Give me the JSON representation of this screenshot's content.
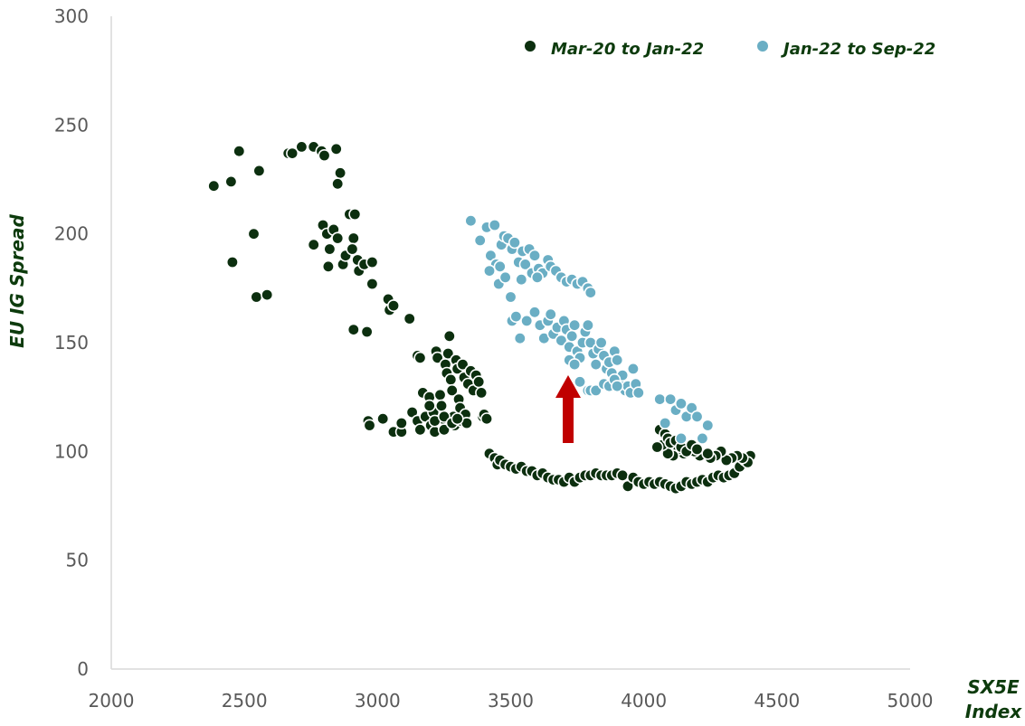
{
  "chart_data": {
    "type": "scatter",
    "title": "",
    "xlabel": "SX5E Index",
    "xlabel_lines": [
      "SX5E",
      "Index"
    ],
    "ylabel": "EU IG Spread",
    "xlim": [
      2000,
      5000
    ],
    "ylim": [
      0,
      300
    ],
    "x_ticks": [
      "2000",
      "2500",
      "3000",
      "3500",
      "4000",
      "4500",
      "5000"
    ],
    "y_ticks": [
      "0",
      "50",
      "100",
      "150",
      "200",
      "250",
      "300"
    ],
    "grid": false,
    "legend": "top-right",
    "annotation": "red up arrow",
    "series": [
      {
        "name": "Mar-20 to Jan-22",
        "color": "#0c2f0f",
        "points": [
          [
            2385,
            222
          ],
          [
            2450,
            224
          ],
          [
            2480,
            238
          ],
          [
            2555,
            229
          ],
          [
            2455,
            187
          ],
          [
            2535,
            200
          ],
          [
            2545,
            171
          ],
          [
            2585,
            172
          ],
          [
            2665,
            237
          ],
          [
            2680,
            237
          ],
          [
            2715,
            240
          ],
          [
            2760,
            240
          ],
          [
            2790,
            238
          ],
          [
            2800,
            236
          ],
          [
            2845,
            239
          ],
          [
            2860,
            228
          ],
          [
            2850,
            223
          ],
          [
            2760,
            195
          ],
          [
            2795,
            204
          ],
          [
            2810,
            200
          ],
          [
            2820,
            193
          ],
          [
            2835,
            202
          ],
          [
            2850,
            198
          ],
          [
            2815,
            185
          ],
          [
            2870,
            186
          ],
          [
            2880,
            190
          ],
          [
            2895,
            209
          ],
          [
            2915,
            209
          ],
          [
            2910,
            198
          ],
          [
            2905,
            193
          ],
          [
            2925,
            188
          ],
          [
            2930,
            183
          ],
          [
            2950,
            186
          ],
          [
            2980,
            187
          ],
          [
            2980,
            177
          ],
          [
            2910,
            156
          ],
          [
            2960,
            155
          ],
          [
            3040,
            170
          ],
          [
            3045,
            165
          ],
          [
            3060,
            167
          ],
          [
            3120,
            161
          ],
          [
            2965,
            114
          ],
          [
            2970,
            112
          ],
          [
            3020,
            115
          ],
          [
            3060,
            109
          ],
          [
            3090,
            109
          ],
          [
            3090,
            113
          ],
          [
            3130,
            118
          ],
          [
            3150,
            114
          ],
          [
            3160,
            110
          ],
          [
            3150,
            144
          ],
          [
            3160,
            143
          ],
          [
            3170,
            127
          ],
          [
            3195,
            125
          ],
          [
            3180,
            116
          ],
          [
            3200,
            112
          ],
          [
            3210,
            118
          ],
          [
            3215,
            109
          ],
          [
            3220,
            146
          ],
          [
            3225,
            143
          ],
          [
            3235,
            126
          ],
          [
            3240,
            121
          ],
          [
            3245,
            115
          ],
          [
            3250,
            110
          ],
          [
            3255,
            140
          ],
          [
            3260,
            136
          ],
          [
            3265,
            145
          ],
          [
            3270,
            153
          ],
          [
            3275,
            133
          ],
          [
            3280,
            128
          ],
          [
            3285,
            116
          ],
          [
            3290,
            112
          ],
          [
            3295,
            142
          ],
          [
            3300,
            138
          ],
          [
            3305,
            124
          ],
          [
            3310,
            120
          ],
          [
            3315,
            114
          ],
          [
            3320,
            140
          ],
          [
            3325,
            134
          ],
          [
            3330,
            117
          ],
          [
            3335,
            113
          ],
          [
            3340,
            131
          ],
          [
            3350,
            137
          ],
          [
            3360,
            128
          ],
          [
            3370,
            135
          ],
          [
            3380,
            132
          ],
          [
            3390,
            127
          ],
          [
            3395,
            116
          ],
          [
            3400,
            117
          ],
          [
            3410,
            115
          ],
          [
            3195,
            121
          ],
          [
            3215,
            114
          ],
          [
            3250,
            116
          ],
          [
            3280,
            113
          ],
          [
            3300,
            115
          ],
          [
            3420,
            99
          ],
          [
            3440,
            97
          ],
          [
            3450,
            94
          ],
          [
            3460,
            96
          ],
          [
            3480,
            94
          ],
          [
            3500,
            93
          ],
          [
            3520,
            92
          ],
          [
            3540,
            93
          ],
          [
            3560,
            91
          ],
          [
            3580,
            91
          ],
          [
            3600,
            89
          ],
          [
            3620,
            90
          ],
          [
            3640,
            88
          ],
          [
            3660,
            87
          ],
          [
            3680,
            87
          ],
          [
            3700,
            86
          ],
          [
            3720,
            88
          ],
          [
            3740,
            86
          ],
          [
            3760,
            88
          ],
          [
            3780,
            89
          ],
          [
            3800,
            89
          ],
          [
            3820,
            90
          ],
          [
            3840,
            89
          ],
          [
            3860,
            89
          ],
          [
            3880,
            89
          ],
          [
            3900,
            90
          ],
          [
            3920,
            89
          ],
          [
            3940,
            84
          ],
          [
            3960,
            88
          ],
          [
            3980,
            86
          ],
          [
            4000,
            85
          ],
          [
            4020,
            86
          ],
          [
            4040,
            85
          ],
          [
            4060,
            86
          ],
          [
            4080,
            85
          ],
          [
            4100,
            84
          ],
          [
            4120,
            83
          ],
          [
            4140,
            84
          ],
          [
            4160,
            86
          ],
          [
            4180,
            85
          ],
          [
            4200,
            86
          ],
          [
            4220,
            87
          ],
          [
            4240,
            86
          ],
          [
            4260,
            88
          ],
          [
            4280,
            89
          ],
          [
            4300,
            88
          ],
          [
            4320,
            89
          ],
          [
            4340,
            90
          ],
          [
            4360,
            93
          ],
          [
            4380,
            96
          ],
          [
            4400,
            98
          ],
          [
            4390,
            95
          ],
          [
            4370,
            97
          ],
          [
            4350,
            98
          ],
          [
            4330,
            97
          ],
          [
            4310,
            96
          ],
          [
            4290,
            100
          ],
          [
            4270,
            98
          ],
          [
            4250,
            97
          ],
          [
            4230,
            99
          ],
          [
            4210,
            98
          ],
          [
            4190,
            100
          ],
          [
            4170,
            102
          ],
          [
            4150,
            99
          ],
          [
            4130,
            101
          ],
          [
            4110,
            98
          ],
          [
            4090,
            99
          ],
          [
            4070,
            103
          ],
          [
            4050,
            102
          ],
          [
            4060,
            110
          ],
          [
            4080,
            108
          ],
          [
            4090,
            106
          ],
          [
            4100,
            104
          ],
          [
            4120,
            105
          ],
          [
            4140,
            102
          ],
          [
            4160,
            100
          ],
          [
            4180,
            103
          ],
          [
            4200,
            101
          ],
          [
            4240,
            99
          ]
        ]
      },
      {
        "name": "Jan-22 to Sep-22",
        "color": "#6aaec4",
        "points": [
          [
            3350,
            206
          ],
          [
            3385,
            197
          ],
          [
            3410,
            203
          ],
          [
            3425,
            190
          ],
          [
            3440,
            204
          ],
          [
            3445,
            186
          ],
          [
            3455,
            177
          ],
          [
            3465,
            195
          ],
          [
            3475,
            199
          ],
          [
            3480,
            180
          ],
          [
            3490,
            198
          ],
          [
            3500,
            171
          ],
          [
            3505,
            193
          ],
          [
            3515,
            196
          ],
          [
            3530,
            187
          ],
          [
            3545,
            192
          ],
          [
            3555,
            186
          ],
          [
            3570,
            193
          ],
          [
            3580,
            182
          ],
          [
            3590,
            190
          ],
          [
            3605,
            184
          ],
          [
            3620,
            182
          ],
          [
            3640,
            188
          ],
          [
            3650,
            185
          ],
          [
            3670,
            183
          ],
          [
            3690,
            180
          ],
          [
            3710,
            178
          ],
          [
            3730,
            179
          ],
          [
            3750,
            177
          ],
          [
            3770,
            178
          ],
          [
            3790,
            175
          ],
          [
            3800,
            173
          ],
          [
            3420,
            183
          ],
          [
            3460,
            185
          ],
          [
            3540,
            179
          ],
          [
            3600,
            180
          ],
          [
            3505,
            160
          ],
          [
            3520,
            162
          ],
          [
            3535,
            152
          ],
          [
            3560,
            160
          ],
          [
            3590,
            164
          ],
          [
            3610,
            158
          ],
          [
            3625,
            152
          ],
          [
            3640,
            160
          ],
          [
            3650,
            163
          ],
          [
            3660,
            154
          ],
          [
            3675,
            157
          ],
          [
            3690,
            151
          ],
          [
            3700,
            160
          ],
          [
            3710,
            156
          ],
          [
            3720,
            148
          ],
          [
            3730,
            153
          ],
          [
            3740,
            158
          ],
          [
            3750,
            146
          ],
          [
            3760,
            143
          ],
          [
            3770,
            150
          ],
          [
            3780,
            155
          ],
          [
            3790,
            158
          ],
          [
            3800,
            150
          ],
          [
            3810,
            145
          ],
          [
            3820,
            140
          ],
          [
            3830,
            147
          ],
          [
            3840,
            150
          ],
          [
            3850,
            144
          ],
          [
            3860,
            138
          ],
          [
            3870,
            141
          ],
          [
            3880,
            136
          ],
          [
            3890,
            146
          ],
          [
            3900,
            142
          ],
          [
            3910,
            132
          ],
          [
            3920,
            135
          ],
          [
            3930,
            128
          ],
          [
            3940,
            130
          ],
          [
            3950,
            127
          ],
          [
            3960,
            138
          ],
          [
            3970,
            131
          ],
          [
            3980,
            127
          ],
          [
            3720,
            142
          ],
          [
            3740,
            140
          ],
          [
            3760,
            132
          ],
          [
            3790,
            128
          ],
          [
            3800,
            128
          ],
          [
            3820,
            128
          ],
          [
            3850,
            131
          ],
          [
            3870,
            130
          ],
          [
            3890,
            133
          ],
          [
            3900,
            130
          ],
          [
            4060,
            124
          ],
          [
            4080,
            113
          ],
          [
            4100,
            124
          ],
          [
            4120,
            119
          ],
          [
            4140,
            122
          ],
          [
            4160,
            116
          ],
          [
            4180,
            120
          ],
          [
            4200,
            116
          ],
          [
            4240,
            112
          ],
          [
            4140,
            106
          ],
          [
            4220,
            106
          ]
        ]
      }
    ]
  }
}
